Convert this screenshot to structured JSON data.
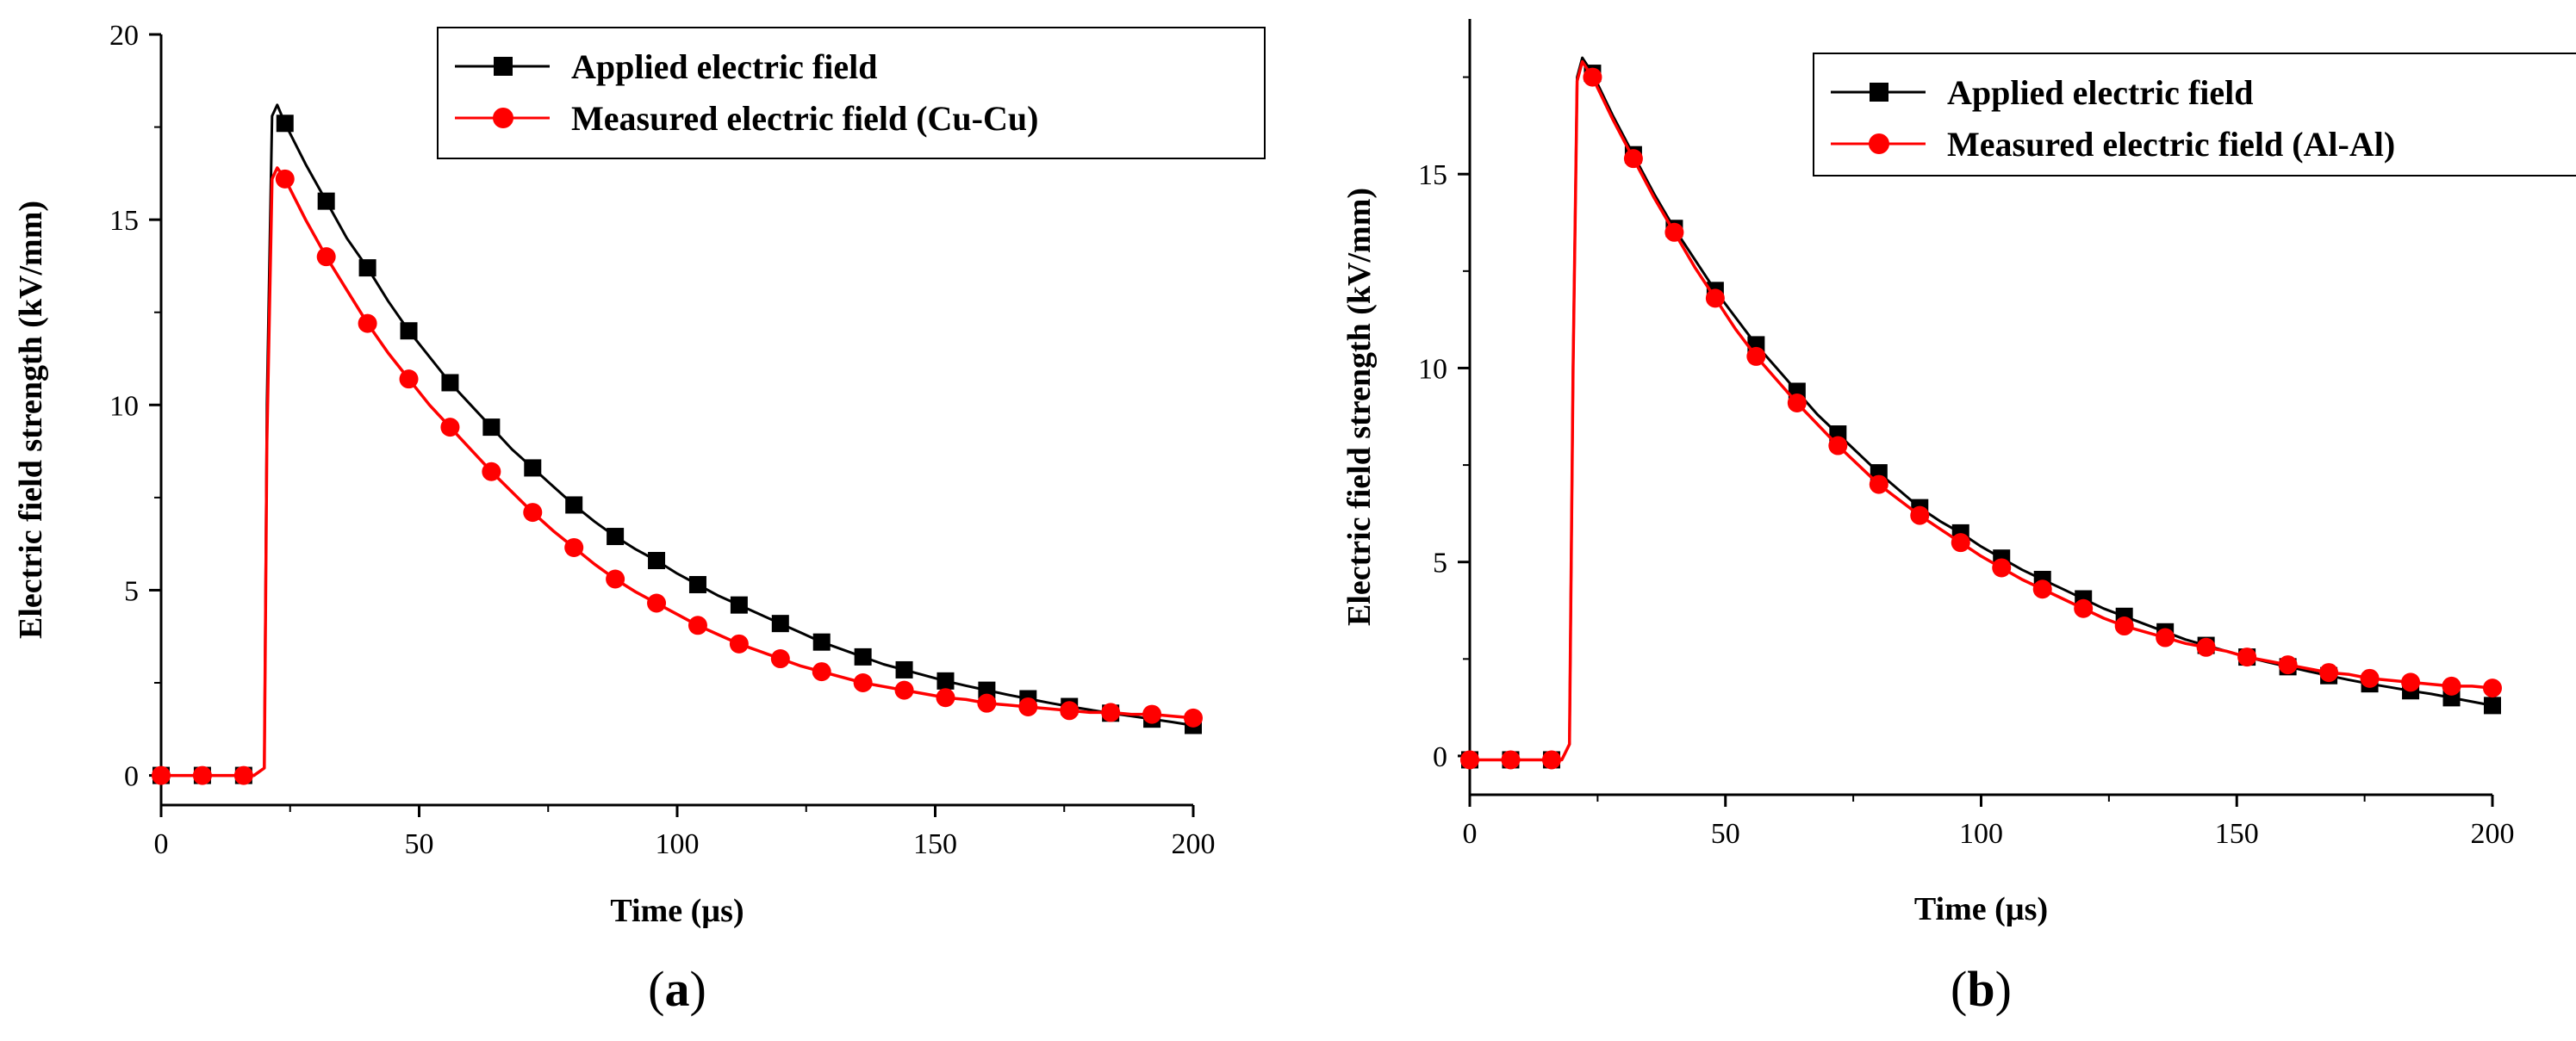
{
  "chart_data": [
    {
      "type": "line",
      "panel_label": "a",
      "title": "",
      "xlabel": "Time (µs)",
      "ylabel": "Electric field strength (kV/mm)",
      "xlim": [
        0,
        200
      ],
      "ylim": [
        -0.8,
        20
      ],
      "xticks": [
        0,
        50,
        100,
        150,
        200
      ],
      "yticks": [
        0,
        5,
        10,
        15,
        20
      ],
      "legend_position": "top-right",
      "series": [
        {
          "name": "Applied electric field",
          "color": "#000000",
          "marker": "square",
          "x": [
            0,
            16,
            18,
            20,
            20.5,
            21.5,
            22.5,
            24,
            28,
            32,
            36,
            40,
            44,
            48,
            52,
            56,
            60,
            64,
            68,
            72,
            76,
            80,
            84,
            88,
            92,
            96,
            100,
            104,
            108,
            112,
            116,
            120,
            124,
            128,
            132,
            136,
            140,
            144,
            148,
            152,
            156,
            160,
            164,
            168,
            172,
            176,
            180,
            184,
            188,
            192,
            196,
            200
          ],
          "y": [
            0,
            0,
            0,
            0.2,
            10,
            17.8,
            18.1,
            17.6,
            16.5,
            15.5,
            14.5,
            13.7,
            12.8,
            12.0,
            11.3,
            10.6,
            10.0,
            9.4,
            8.8,
            8.3,
            7.8,
            7.3,
            6.85,
            6.45,
            6.1,
            5.8,
            5.45,
            5.15,
            4.85,
            4.6,
            4.35,
            4.1,
            3.85,
            3.6,
            3.4,
            3.2,
            3.0,
            2.85,
            2.7,
            2.55,
            2.42,
            2.3,
            2.18,
            2.07,
            1.96,
            1.86,
            1.77,
            1.68,
            1.6,
            1.52,
            1.44,
            1.35
          ],
          "marker_x": [
            0,
            8,
            16,
            24,
            32,
            40,
            48,
            56,
            64,
            72,
            80,
            88,
            96,
            104,
            112,
            120,
            128,
            136,
            144,
            152,
            160,
            168,
            176,
            184,
            192,
            200
          ]
        },
        {
          "name": "Measured electric field (Cu-Cu)",
          "color": "#ff0000",
          "marker": "circle",
          "x": [
            0,
            16,
            18,
            20,
            20.5,
            21.5,
            22.5,
            24,
            28,
            32,
            36,
            40,
            44,
            48,
            52,
            56,
            60,
            64,
            68,
            72,
            76,
            80,
            84,
            88,
            92,
            96,
            100,
            104,
            108,
            112,
            116,
            120,
            124,
            128,
            132,
            136,
            140,
            144,
            148,
            152,
            156,
            160,
            164,
            168,
            172,
            176,
            180,
            184,
            188,
            192,
            196,
            200
          ],
          "y": [
            0,
            0,
            0,
            0.2,
            9,
            16.1,
            16.4,
            16.1,
            15.0,
            14.0,
            13.1,
            12.2,
            11.4,
            10.7,
            10.0,
            9.4,
            8.8,
            8.2,
            7.65,
            7.1,
            6.6,
            6.15,
            5.7,
            5.3,
            4.95,
            4.65,
            4.35,
            4.05,
            3.8,
            3.55,
            3.35,
            3.15,
            2.95,
            2.8,
            2.65,
            2.5,
            2.4,
            2.3,
            2.2,
            2.1,
            2.05,
            1.95,
            1.9,
            1.85,
            1.8,
            1.75,
            1.7,
            1.7,
            1.65,
            1.65,
            1.6,
            1.55
          ],
          "marker_x": [
            0,
            8,
            16,
            24,
            32,
            40,
            48,
            56,
            64,
            72,
            80,
            88,
            96,
            104,
            112,
            120,
            128,
            136,
            144,
            152,
            160,
            168,
            176,
            184,
            192,
            200
          ]
        }
      ]
    },
    {
      "type": "line",
      "panel_label": "b",
      "title": "",
      "xlabel": "Time (µs)",
      "ylabel": "Electric field strength (kV/mm)",
      "xlim": [
        0,
        200
      ],
      "ylim": [
        -1,
        19
      ],
      "xticks": [
        0,
        50,
        100,
        150,
        200
      ],
      "yticks": [
        0,
        5,
        10,
        15
      ],
      "legend_position": "top-right",
      "series": [
        {
          "name": "Applied electric field",
          "color": "#000000",
          "marker": "square",
          "x": [
            0,
            16,
            18,
            19.5,
            20.2,
            21,
            22,
            24,
            28,
            32,
            36,
            40,
            44,
            48,
            52,
            56,
            60,
            64,
            68,
            72,
            76,
            80,
            84,
            88,
            92,
            96,
            100,
            104,
            108,
            112,
            116,
            120,
            124,
            128,
            132,
            136,
            140,
            144,
            148,
            152,
            156,
            160,
            164,
            168,
            172,
            176,
            180,
            184,
            188,
            192,
            196,
            200
          ],
          "y": [
            -0.1,
            -0.1,
            -0.1,
            0.3,
            10,
            17.5,
            18.0,
            17.6,
            16.5,
            15.5,
            14.5,
            13.6,
            12.8,
            12.0,
            11.3,
            10.6,
            10.0,
            9.4,
            8.8,
            8.3,
            7.8,
            7.3,
            6.85,
            6.4,
            6.05,
            5.75,
            5.4,
            5.1,
            4.8,
            4.55,
            4.3,
            4.05,
            3.8,
            3.6,
            3.4,
            3.2,
            3.0,
            2.85,
            2.7,
            2.55,
            2.42,
            2.3,
            2.18,
            2.07,
            1.96,
            1.86,
            1.77,
            1.68,
            1.6,
            1.5,
            1.4,
            1.3
          ],
          "marker_x": [
            0,
            8,
            16,
            24,
            32,
            40,
            48,
            56,
            64,
            72,
            80,
            88,
            96,
            104,
            112,
            120,
            128,
            136,
            144,
            152,
            160,
            168,
            176,
            184,
            192,
            200
          ]
        },
        {
          "name": "Measured electric field (Al-Al)",
          "color": "#ff0000",
          "marker": "circle",
          "x": [
            0,
            16,
            18,
            19.5,
            20.2,
            21,
            22,
            24,
            28,
            32,
            36,
            40,
            44,
            48,
            52,
            56,
            60,
            64,
            68,
            72,
            76,
            80,
            84,
            88,
            92,
            96,
            100,
            104,
            108,
            112,
            116,
            120,
            124,
            128,
            132,
            136,
            140,
            144,
            148,
            152,
            156,
            160,
            164,
            168,
            172,
            176,
            180,
            184,
            188,
            192,
            196,
            200
          ],
          "y": [
            -0.1,
            -0.1,
            -0.1,
            0.3,
            10,
            17.4,
            17.9,
            17.5,
            16.4,
            15.4,
            14.4,
            13.5,
            12.6,
            11.8,
            11.0,
            10.3,
            9.7,
            9.1,
            8.55,
            8.0,
            7.5,
            7.0,
            6.6,
            6.2,
            5.85,
            5.5,
            5.15,
            4.85,
            4.55,
            4.3,
            4.05,
            3.8,
            3.55,
            3.35,
            3.2,
            3.05,
            2.9,
            2.8,
            2.7,
            2.55,
            2.45,
            2.35,
            2.25,
            2.15,
            2.1,
            2.0,
            1.95,
            1.9,
            1.85,
            1.8,
            1.8,
            1.75
          ],
          "marker_x": [
            0,
            8,
            16,
            24,
            32,
            40,
            48,
            56,
            64,
            72,
            80,
            88,
            96,
            104,
            112,
            120,
            128,
            136,
            144,
            152,
            160,
            168,
            176,
            184,
            192,
            200
          ]
        }
      ]
    }
  ]
}
